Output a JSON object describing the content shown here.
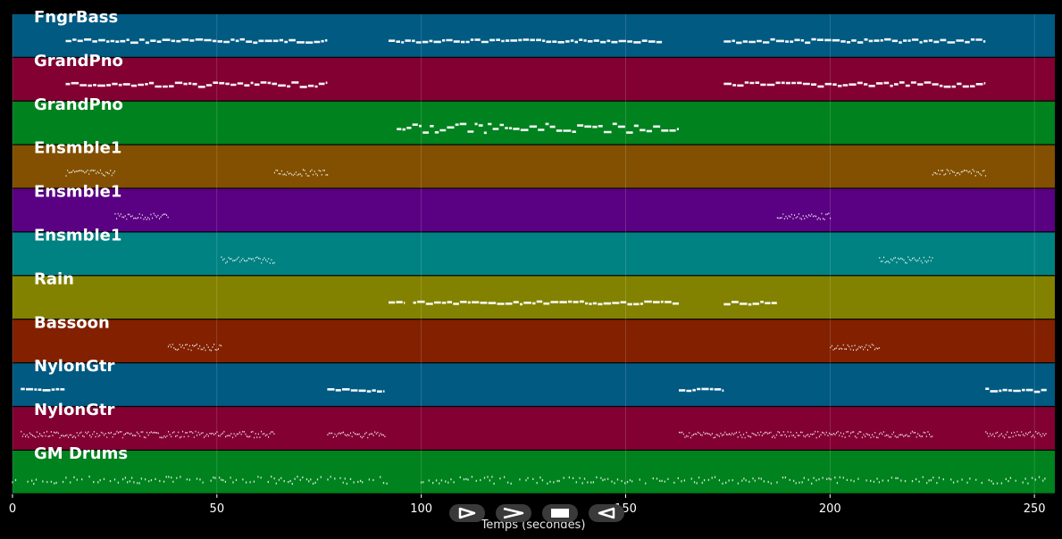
{
  "x_axis": {
    "label": "Temps (secondes)",
    "min": 0,
    "max": 255,
    "ticks": [
      0,
      50,
      100,
      150,
      200,
      250
    ]
  },
  "tracks": [
    {
      "name": "FngrBass",
      "color": "#005a82",
      "style": "melody",
      "segments": [
        {
          "start": 13,
          "end": 77,
          "amp": 2
        },
        {
          "start": 92,
          "end": 159,
          "amp": 1.5
        },
        {
          "start": 174,
          "end": 238,
          "amp": 2
        }
      ]
    },
    {
      "name": "GrandPno",
      "color": "#820032",
      "style": "melody",
      "segments": [
        {
          "start": 13,
          "end": 77,
          "amp": 2.5
        },
        {
          "start": 174,
          "end": 238,
          "amp": 2.5
        }
      ]
    },
    {
      "name": "GrandPno",
      "color": "#00821e",
      "style": "melody",
      "segments": [
        {
          "start": 94,
          "end": 163,
          "amp": 5
        }
      ]
    },
    {
      "name": "Ensmble1",
      "color": "#825000",
      "style": "chords",
      "segments": [
        {
          "start": 13,
          "end": 25
        },
        {
          "start": 64,
          "end": 77
        },
        {
          "start": 225,
          "end": 238
        }
      ]
    },
    {
      "name": "Ensmble1",
      "color": "#5a0082",
      "style": "chords",
      "segments": [
        {
          "start": 25,
          "end": 38
        },
        {
          "start": 187,
          "end": 200
        }
      ]
    },
    {
      "name": "Ensmble1",
      "color": "#008282",
      "style": "chords",
      "segments": [
        {
          "start": 51,
          "end": 64
        },
        {
          "start": 212,
          "end": 225
        }
      ]
    },
    {
      "name": "Rain",
      "color": "#828200",
      "style": "melody",
      "segments": [
        {
          "start": 92,
          "end": 96,
          "amp": 1
        },
        {
          "start": 98,
          "end": 163,
          "amp": 1.5
        },
        {
          "start": 174,
          "end": 187,
          "amp": 2
        }
      ]
    },
    {
      "name": "Bassoon",
      "color": "#822000",
      "style": "chords",
      "segments": [
        {
          "start": 38,
          "end": 51
        },
        {
          "start": 200,
          "end": 212
        }
      ]
    },
    {
      "name": "NylonGtr",
      "color": "#005a82",
      "style": "melody",
      "segments": [
        {
          "start": 2,
          "end": 13,
          "amp": 1.5
        },
        {
          "start": 77,
          "end": 91,
          "amp": 1.5
        },
        {
          "start": 163,
          "end": 174,
          "amp": 1.5
        },
        {
          "start": 238,
          "end": 253,
          "amp": 2
        }
      ]
    },
    {
      "name": "NylonGtr",
      "color": "#820032",
      "style": "chords",
      "segments": [
        {
          "start": 2,
          "end": 64
        },
        {
          "start": 77,
          "end": 91
        },
        {
          "start": 163,
          "end": 225
        },
        {
          "start": 238,
          "end": 253
        }
      ]
    },
    {
      "name": "GM Drums",
      "color": "#00821e",
      "style": "drums",
      "segments": [
        {
          "start": 0,
          "end": 92
        },
        {
          "start": 100,
          "end": 253
        }
      ]
    }
  ],
  "transport": {
    "buttons": [
      {
        "name": "play-button",
        "icon": "play-outline-icon"
      },
      {
        "name": "next-button",
        "icon": "chevron-right-icon"
      },
      {
        "name": "stop-button",
        "icon": "stop-icon"
      },
      {
        "name": "rewind-button",
        "icon": "reverse-outline-icon"
      }
    ]
  }
}
